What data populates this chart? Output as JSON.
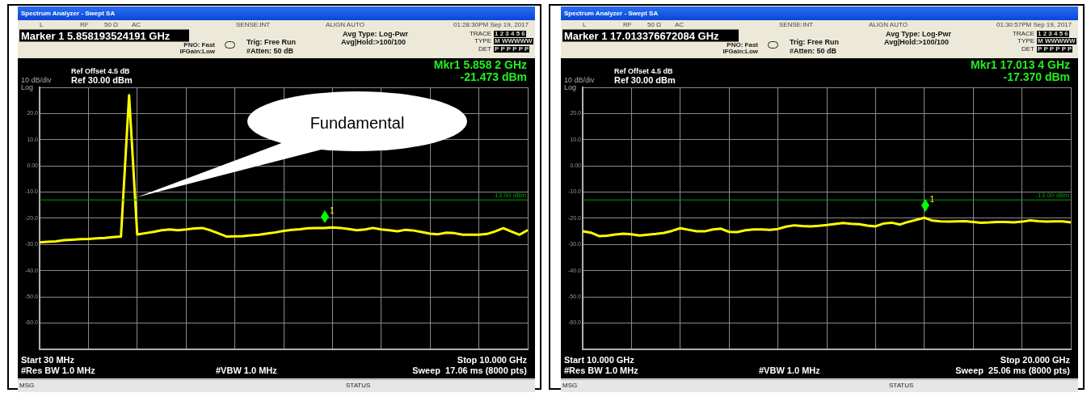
{
  "chart_data": [
    {
      "type": "line",
      "title": "Spectrum Analyzer - Swept SA",
      "categories": [
        null,
        null,
        null,
        null,
        null,
        null,
        null,
        null,
        null,
        null,
        null,
        null,
        null,
        null,
        null,
        null,
        null,
        null,
        null,
        null,
        null,
        null,
        null,
        null,
        null,
        null,
        null,
        null,
        null,
        null,
        null,
        null,
        null,
        null,
        null,
        null,
        null,
        null,
        null,
        null,
        null,
        null,
        null,
        null,
        null,
        null,
        null,
        null,
        null,
        null,
        null,
        null,
        null,
        null,
        null,
        null,
        null,
        null,
        null,
        null,
        null
      ],
      "ylim": [
        -70,
        30
      ],
      "yticks": [
        {
          "value": 30,
          "label": null
        },
        {
          "value": 20,
          "label": "20.0"
        },
        {
          "value": 10,
          "label": "10.0"
        },
        {
          "value": 0,
          "label": "0.00"
        },
        {
          "value": -10,
          "label": "-10.0"
        },
        {
          "value": -20,
          "label": "-20.0"
        },
        {
          "value": -30,
          "label": "-30.0"
        },
        {
          "value": -40,
          "label": "-40.0"
        },
        {
          "value": -50,
          "label": "-50.0"
        },
        {
          "value": -60,
          "label": "-60.0"
        },
        {
          "value": -70,
          "label": null
        }
      ],
      "tick_labels": "y",
      "grid": true,
      "legend": false,
      "series": [
        {
          "color": "#ffff00",
          "values": [
            -29.2,
            -29.0,
            -28.8,
            -28.4,
            -28.2,
            -28.0,
            -27.9,
            -27.7,
            -27.5,
            -27.2,
            -27.0,
            27,
            -26.2,
            -25.7,
            -25.2,
            -24.6,
            -24.3,
            -24.6,
            -24.3,
            -23.9,
            -23.7,
            -24.6,
            -25.8,
            -27.0,
            -26.9,
            -26.8,
            -26.5,
            -26.3,
            -25.8,
            -25.4,
            -24.8,
            -24.4,
            -24.2,
            -23.8,
            -23.7,
            -23.7,
            -23.5,
            -23.7,
            -24.1,
            -24.6,
            -24.3,
            -23.7,
            -24.3,
            -24.6,
            -25.0,
            -24.4,
            -24.7,
            -25.3,
            -25.9,
            -26.1,
            -25.5,
            -25.7,
            -26.3,
            -26.3,
            -26.3,
            -26.0,
            -25.0,
            -23.8,
            -25.1,
            -26.3,
            -24.5
          ]
        }
      ],
      "ref_lines": [
        {
          "axis": "y",
          "value": -13,
          "label": "-13.00 dBm",
          "color": "#00a000"
        }
      ],
      "annotations": [
        "L",
        "RF",
        "50 Ω",
        "AC",
        "SENSE:INT",
        "ALIGN AUTO",
        "01:28:30PM Sep 19, 2017",
        "Marker 1 5.858193524191 GHz",
        "PNO: Fast",
        "IFGain:Low",
        "Trig: Free Run",
        "#Atten: 50 dB",
        "Avg Type: Log-Pwr",
        "Avg|Hold:>100/100",
        "TRACE",
        "1 2 3 4 5 6",
        "TYPE",
        "M WWWWW",
        "DET",
        "P P P P P P",
        "Ref Offset 4.5 dB",
        "Ref 30.00 dBm",
        "10 dB/div",
        "Log",
        "Mkr1 5.858 2 GHz",
        "-21.473 dBm",
        "Start 30 MHz",
        "Stop 10.000 GHz",
        "#Res BW 1.0 MHz",
        "#VBW 1.0 MHz",
        "Sweep  17.06 ms (8000 pts)",
        "MSG",
        "STATUS",
        "Fundamental",
        "1"
      ]
    },
    {
      "type": "line",
      "title": "Spectrum Analyzer - Swept SA",
      "categories": [
        null,
        null,
        null,
        null,
        null,
        null,
        null,
        null,
        null,
        null,
        null,
        null,
        null,
        null,
        null,
        null,
        null,
        null,
        null,
        null,
        null,
        null,
        null,
        null,
        null,
        null,
        null,
        null,
        null,
        null,
        null,
        null,
        null,
        null,
        null,
        null,
        null,
        null,
        null,
        null,
        null,
        null,
        null,
        null,
        null,
        null,
        null,
        null,
        null,
        null,
        null,
        null,
        null,
        null,
        null,
        null,
        null,
        null,
        null,
        null,
        null
      ],
      "ylim": [
        -70,
        30
      ],
      "yticks": [
        {
          "value": 30,
          "label": null
        },
        {
          "value": 20,
          "label": "20.0"
        },
        {
          "value": 10,
          "label": "10.0"
        },
        {
          "value": 0,
          "label": "0.00"
        },
        {
          "value": -10,
          "label": "-10.0"
        },
        {
          "value": -20,
          "label": "-20.0"
        },
        {
          "value": -30,
          "label": "-30.0"
        },
        {
          "value": -40,
          "label": "-40.0"
        },
        {
          "value": -50,
          "label": "-50.0"
        },
        {
          "value": -60,
          "label": "-60.0"
        },
        {
          "value": -70,
          "label": null
        }
      ],
      "tick_labels": "y",
      "grid": true,
      "legend": false,
      "series": [
        {
          "color": "#ffff00",
          "values": [
            -25.0,
            -25.5,
            -26.8,
            -26.7,
            -26.2,
            -25.9,
            -26.1,
            -26.6,
            -26.3,
            -26.0,
            -25.6,
            -24.8,
            -23.8,
            -24.4,
            -25.0,
            -25.0,
            -24.3,
            -24.0,
            -25.2,
            -25.3,
            -24.6,
            -24.3,
            -24.3,
            -24.4,
            -24.1,
            -23.2,
            -22.7,
            -23.0,
            -23.1,
            -22.9,
            -22.6,
            -22.2,
            -21.8,
            -22.1,
            -22.3,
            -22.8,
            -23.1,
            -22.0,
            -21.7,
            -22.4,
            -21.4,
            -20.6,
            -19.8,
            -20.9,
            -21.2,
            -21.3,
            -21.2,
            -21.1,
            -21.4,
            -21.7,
            -21.6,
            -21.4,
            -21.4,
            -21.6,
            -21.3,
            -20.8,
            -21.1,
            -21.3,
            -21.2,
            -21.2,
            -21.6
          ]
        }
      ],
      "ref_lines": [
        {
          "axis": "y",
          "value": -13,
          "label": "-13.00 dBm",
          "color": "#00a000"
        }
      ],
      "annotations": [
        "L",
        "RF",
        "50 Ω",
        "AC",
        "SENSE:INT",
        "ALIGN AUTO",
        "01:30:57PM Sep 19, 2017",
        "Marker 1 17.013376672084 GHz",
        "PNO: Fast",
        "IFGain:Low",
        "Trig: Free Run",
        "#Atten: 50 dB",
        "Avg Type: Log-Pwr",
        "Avg|Hold:>100/100",
        "TRACE",
        "1 2 3 4 5 6",
        "TYPE",
        "M WWWWW",
        "DET",
        "P P P P P P",
        "Ref Offset 4.5 dB",
        "Ref 30.00 dBm",
        "10 dB/div",
        "Log",
        "Mkr1 17.013 4 GHz",
        "-17.370 dBm",
        "Start 10.000 GHz",
        "Stop 20.000 GHz",
        "#Res BW 1.0 MHz",
        "#VBW 1.0 MHz",
        "Sweep  25.06 ms (8000 pts)",
        "MSG",
        "STATUS",
        "1"
      ]
    }
  ]
}
